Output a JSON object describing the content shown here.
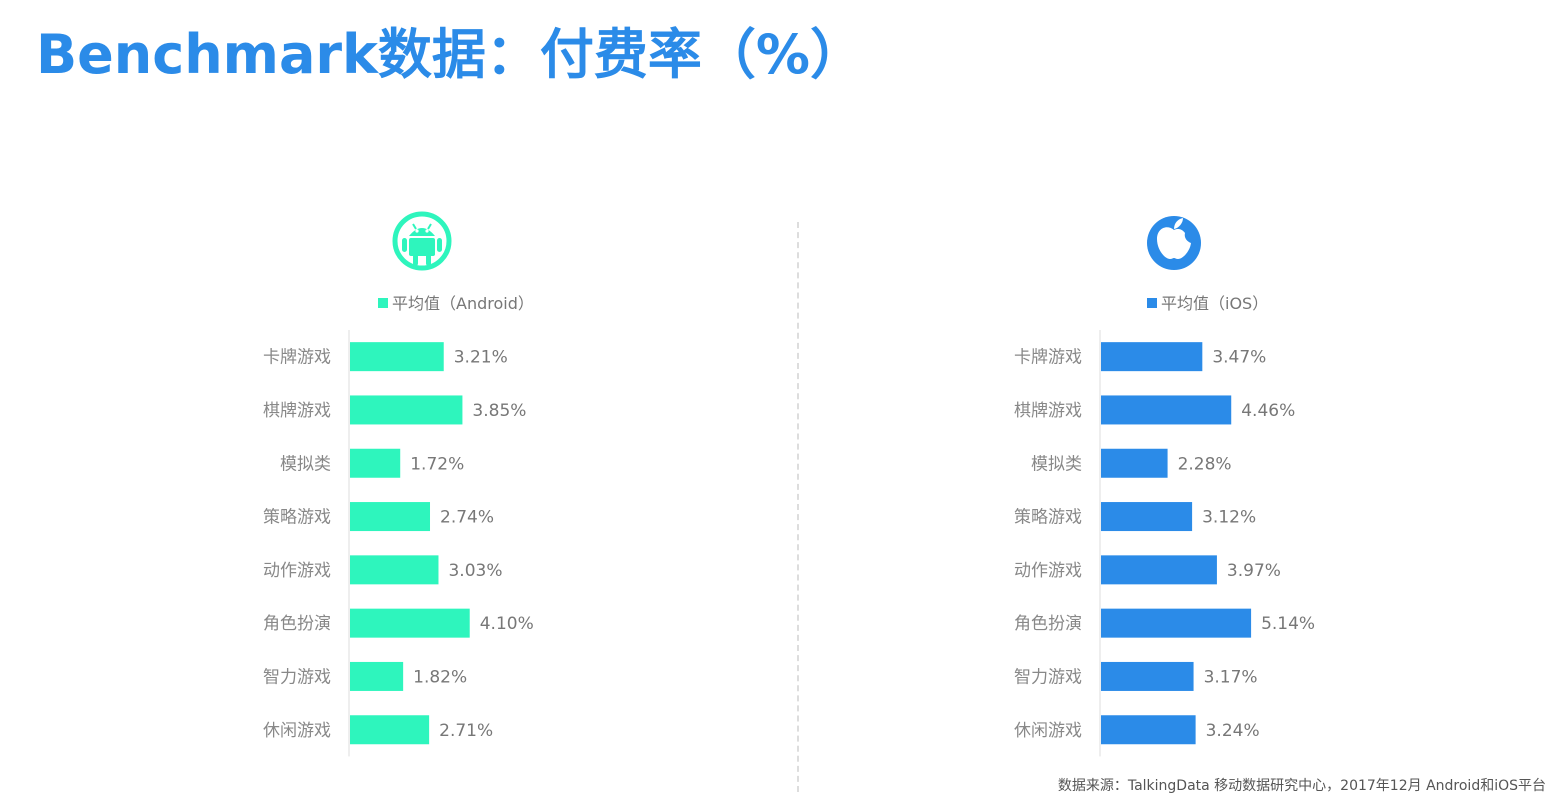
{
  "title": "Benchmark数据：付费率（%）",
  "source": "数据来源：TalkingData 移动数据研究中心，2017年12月 Android和iOS平台",
  "chart_data": [
    {
      "type": "bar",
      "orientation": "horizontal",
      "platform_icon": "android-icon",
      "color": "#2ef5bd",
      "legend": "平均值（Android）",
      "categories": [
        "卡牌游戏",
        "棋牌游戏",
        "模拟类",
        "策略游戏",
        "动作游戏",
        "角色扮演",
        "智力游戏",
        "休闲游戏"
      ],
      "values": [
        3.21,
        3.85,
        1.72,
        2.74,
        3.03,
        4.1,
        1.82,
        2.71
      ],
      "labels": [
        "3.21%",
        "3.85%",
        "1.72%",
        "2.74%",
        "3.03%",
        "4.10%",
        "1.82%",
        "2.71%"
      ]
    },
    {
      "type": "bar",
      "orientation": "horizontal",
      "platform_icon": "apple-icon",
      "color": "#2b8be8",
      "legend": "平均值（iOS）",
      "categories": [
        "卡牌游戏",
        "棋牌游戏",
        "模拟类",
        "策略游戏",
        "动作游戏",
        "角色扮演",
        "智力游戏",
        "休闲游戏"
      ],
      "values": [
        3.47,
        4.46,
        2.28,
        3.12,
        3.97,
        5.14,
        3.17,
        3.24
      ],
      "labels": [
        "3.47%",
        "4.46%",
        "2.28%",
        "3.12%",
        "3.97%",
        "5.14%",
        "3.17%",
        "3.24%"
      ]
    }
  ]
}
